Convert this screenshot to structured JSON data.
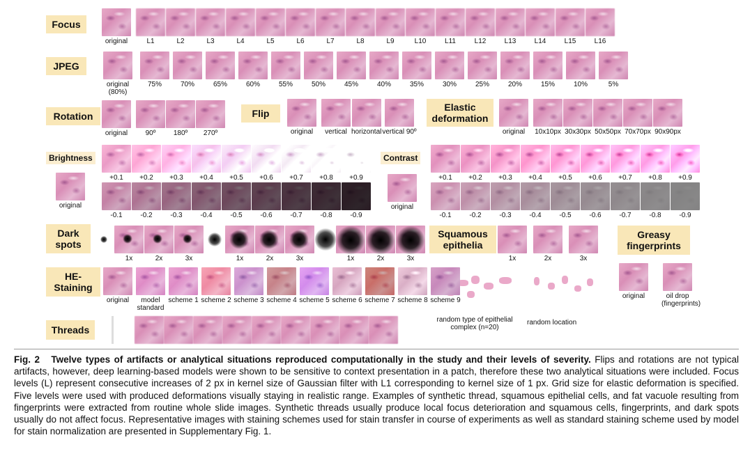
{
  "labels": {
    "focus": "Focus",
    "jpeg": "JPEG",
    "rotation": "Rotation",
    "flip": "Flip",
    "elastic": "Elastic deformation",
    "brightness": "Brightness",
    "contrast": "Contrast",
    "dark_spots": "Dark spots",
    "squamous": "Squamous epithelia",
    "greasy": "Greasy fingerprints",
    "he_staining": "HE-Staining",
    "threads": "Threads"
  },
  "focus_caps": [
    "original",
    "L1",
    "L2",
    "L3",
    "L4",
    "L5",
    "L6",
    "L7",
    "L8",
    "L9",
    "L10",
    "L11",
    "L12",
    "L13",
    "L14",
    "L15",
    "L16"
  ],
  "jpeg_caps": [
    "original (80%)",
    "75%",
    "70%",
    "65%",
    "60%",
    "55%",
    "50%",
    "45%",
    "40%",
    "35%",
    "30%",
    "25%",
    "20%",
    "15%",
    "10%",
    "5%"
  ],
  "rotation_caps": [
    "original",
    "90º",
    "180º",
    "270º"
  ],
  "flip_caps": [
    "original",
    "vertical",
    "horizontal",
    "vertical 90º"
  ],
  "elastic_caps": [
    "original",
    "10x10px",
    "30x30px",
    "50x50px",
    "70x70px",
    "90x90px"
  ],
  "brightness_pos": [
    "+0.1",
    "+0.2",
    "+0.3",
    "+0.4",
    "+0.5",
    "+0.6",
    "+0.7",
    "+0.8",
    "+0.9"
  ],
  "brightness_neg": [
    "-0.1",
    "-0.2",
    "-0.3",
    "-0.4",
    "-0.5",
    "-0.6",
    "-0.7",
    "-0.8",
    "-0.9"
  ],
  "brightness_original": "original",
  "contrast_pos": [
    "+0.1",
    "+0.2",
    "+0.3",
    "+0.4",
    "+0.5",
    "+0.6",
    "+0.7",
    "+0.8",
    "+0.9"
  ],
  "contrast_neg": [
    "-0.1",
    "-0.2",
    "-0.3",
    "-0.4",
    "-0.5",
    "-0.6",
    "-0.7",
    "-0.8",
    "-0.9"
  ],
  "contrast_original": "original",
  "dark_caps": [
    "1x",
    "2x",
    "3x"
  ],
  "squamous_caps": [
    "1x",
    "2x",
    "3x"
  ],
  "squamous_bottom": [
    "random type of epithelial complex (n=20)",
    "random location"
  ],
  "greasy_caps": [
    "original",
    "oil drop (fingerprints)"
  ],
  "he_caps": [
    "original",
    "model standard",
    "scheme 1",
    "scheme 2",
    "scheme 3",
    "scheme 4",
    "scheme 5",
    "scheme 6",
    "scheme 7",
    "scheme 8",
    "scheme 9"
  ],
  "caption": {
    "fig": "Fig. 2",
    "title": "Twelve types of artifacts or analytical situations reproduced computationally in the study and their levels of severity.",
    "body": "Flips and rotations are not typical artifacts, however, deep learning-based models were shown to be sensitive to context presentation in a patch, therefore these two analytical situations were included. Focus levels (L) represent consecutive increases of 2 px in kernel size of Gaussian filter with L1 corresponding to kernel size of 1 px. Grid size for elastic deformation is specified. Five levels were used with produced deformations visually staying in realistic range. Examples of synthetic thread, squamous epithelial cells, and fat vacuole resulting from fingerprints were extracted from routine whole slide images. Synthetic threads usually produce local focus deterioration and squamous cells, fingerprints, and dark spots usually do not affect focus. Representative images with staining schemes used for stain transfer in course of experiments as well as standard staining scheme used by model for stain normalization are presented in Supplementary Fig. 1."
  }
}
